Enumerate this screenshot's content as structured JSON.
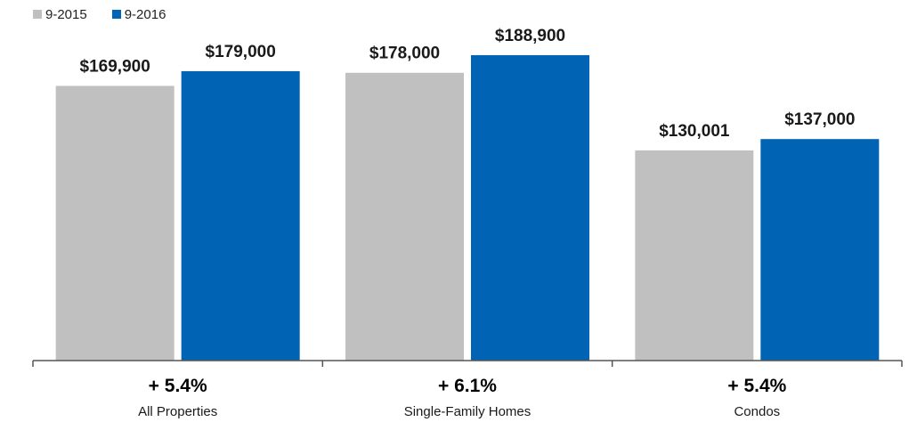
{
  "chart_data": {
    "type": "bar",
    "categories": [
      "All Properties",
      "Single-Family Homes",
      "Condos"
    ],
    "changes": [
      "+ 5.4%",
      "+ 6.1%",
      "+ 5.4%"
    ],
    "series": [
      {
        "name": "9-2015",
        "color": "#c0c0c0",
        "values": [
          169900,
          178000,
          130001
        ],
        "labels": [
          "$169,900",
          "$178,000",
          "$130,001"
        ]
      },
      {
        "name": "9-2016",
        "color": "#0063b4",
        "values": [
          179000,
          188900,
          137000
        ],
        "labels": [
          "$179,000",
          "$188,900",
          "$137,000"
        ]
      }
    ],
    "ylim": [
      0,
      212000
    ],
    "grid": false,
    "legend_position": "top-left",
    "axis_color": "#555555"
  }
}
